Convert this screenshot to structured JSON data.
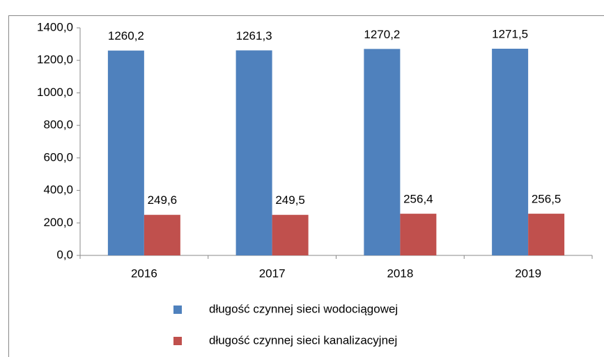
{
  "chart_data": {
    "type": "bar",
    "categories": [
      "2016",
      "2017",
      "2018",
      "2019"
    ],
    "series": [
      {
        "name": "długość czynnej sieci wodociągowej",
        "color": "#4f81bd",
        "values": [
          1260.2,
          1261.3,
          1270.2,
          1271.5
        ],
        "value_labels": [
          "1260,2",
          "1261,3",
          "1270,2",
          "1271,5"
        ]
      },
      {
        "name": "długość czynnej sieci kanalizacyjnej",
        "color": "#c0504d",
        "values": [
          249.6,
          249.5,
          256.4,
          256.5
        ],
        "value_labels": [
          "249,6",
          "249,5",
          "256,4",
          "256,5"
        ]
      }
    ],
    "ylim": [
      0,
      1400
    ],
    "yticks": [
      {
        "value": 0,
        "label": "0,0"
      },
      {
        "value": 200,
        "label": "200,0"
      },
      {
        "value": 400,
        "label": "400,0"
      },
      {
        "value": 600,
        "label": "600,0"
      },
      {
        "value": 800,
        "label": "800,0"
      },
      {
        "value": 1000,
        "label": "1000,0"
      },
      {
        "value": 1200,
        "label": "1200,0"
      },
      {
        "value": 1400,
        "label": "1400,0"
      }
    ],
    "grid": false,
    "legend": "bottom"
  }
}
